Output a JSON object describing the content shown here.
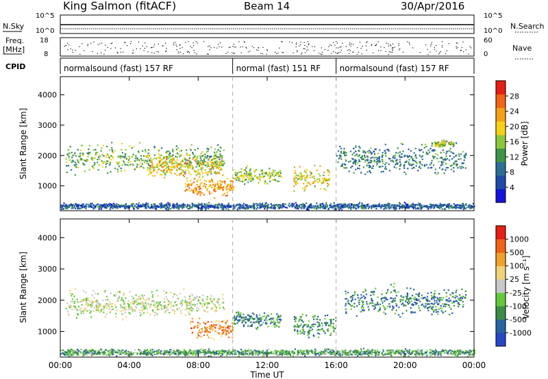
{
  "header": {
    "station": "King Salmon (fitACF)",
    "beam": "Beam 14",
    "date": "30/Apr/2016"
  },
  "strip_panels": {
    "nsky_label": "N.Sky",
    "nsky_ticks": [
      "10^5",
      "10^0"
    ],
    "nsearch_label": "N.Search",
    "nsearch_ticks": [
      "10^5",
      "10^0"
    ],
    "freq_label": "Freq.",
    "freq_unit": "[MHz]",
    "freq_ticks": [
      "18",
      "8"
    ],
    "nave_label": "Nave",
    "nave_ticks": [
      "60",
      "0"
    ],
    "cpid_label": "CPID",
    "cpid_segments": [
      {
        "start_hour": 0,
        "end_hour": 10,
        "text": "normalsound (fast) 157 RF"
      },
      {
        "start_hour": 10,
        "end_hour": 16,
        "text": "normal (fast) 151 RF"
      },
      {
        "start_hour": 16,
        "end_hour": 24,
        "text": "normalsound (fast) 157 RF"
      }
    ]
  },
  "chart_data": [
    {
      "type": "heatmap",
      "name": "power",
      "ylabel": "Slant Range [km]",
      "yticks": [
        "1000",
        "2000",
        "3000",
        "4000"
      ],
      "ylim": [
        180,
        4600
      ],
      "xlim": [
        0,
        24
      ],
      "colorbar_label": "Power [dB]",
      "colorbar_ticks": [
        "28",
        "24",
        "20",
        "16",
        "12",
        "8",
        "4"
      ],
      "colorbar_colors": [
        "#1414dc",
        "#1e4ba8",
        "#2d6e96",
        "#3c9646",
        "#8cc83c",
        "#f5d214",
        "#f5a014",
        "#f06414",
        "#e61e14"
      ],
      "regions": [
        {
          "t0": 0.3,
          "t1": 9.5,
          "r_center": 1900,
          "r_spread": 350,
          "level": 0.45
        },
        {
          "t0": 5.0,
          "t1": 9.4,
          "r_center": 1650,
          "r_spread": 250,
          "level": 0.65
        },
        {
          "t0": 7.2,
          "t1": 10.0,
          "r_center": 1000,
          "r_spread": 250,
          "level": 0.75
        },
        {
          "t0": 10.0,
          "t1": 12.8,
          "r_center": 1350,
          "r_spread": 200,
          "level": 0.5
        },
        {
          "t0": 13.5,
          "t1": 15.6,
          "r_center": 1250,
          "r_spread": 300,
          "level": 0.6
        },
        {
          "t0": 16.0,
          "t1": 23.5,
          "r_center": 1900,
          "r_spread": 350,
          "level": 0.3
        },
        {
          "t0": 21.5,
          "t1": 22.8,
          "r_center": 2400,
          "r_spread": 100,
          "level": 0.55
        },
        {
          "t0": 0.0,
          "t1": 24.0,
          "r_center": 350,
          "r_spread": 80,
          "level": 0.2
        }
      ]
    },
    {
      "type": "heatmap",
      "name": "velocity",
      "ylabel": "Slant Range [km]",
      "yticks": [
        "1000",
        "2000",
        "3000",
        "4000"
      ],
      "ylim": [
        180,
        4600
      ],
      "xlabel": "Time UT",
      "xticks": [
        "00:00",
        "04:00",
        "08:00",
        "12:00",
        "16:00",
        "20:00",
        "00:00"
      ],
      "xlim": [
        0,
        24
      ],
      "colorbar_label": "Velocity [m s⁻¹]",
      "colorbar_ticks": [
        "1000",
        "500",
        "100",
        "25",
        "-25",
        "-100",
        "-500",
        "-1000"
      ],
      "colorbar_colors": [
        "#2846c8",
        "#2864a0",
        "#3c8c46",
        "#64c83c",
        "#c8c8c8",
        "#f0d278",
        "#f0a028",
        "#f06414",
        "#e61e14"
      ],
      "regions": [
        {
          "t0": 0.3,
          "t1": 9.5,
          "r_center": 1900,
          "r_spread": 300,
          "level": 0.5
        },
        {
          "t0": 7.5,
          "t1": 10.0,
          "r_center": 1100,
          "r_spread": 250,
          "level": 0.8
        },
        {
          "t0": 10.0,
          "t1": 12.8,
          "r_center": 1400,
          "r_spread": 200,
          "level": 0.2
        },
        {
          "t0": 13.5,
          "t1": 16.0,
          "r_center": 1200,
          "r_spread": 300,
          "level": 0.25
        },
        {
          "t0": 16.5,
          "t1": 23.5,
          "r_center": 2000,
          "r_spread": 350,
          "level": 0.2
        },
        {
          "t0": 0.0,
          "t1": 24.0,
          "r_center": 350,
          "r_spread": 80,
          "level": 0.3
        }
      ]
    }
  ]
}
